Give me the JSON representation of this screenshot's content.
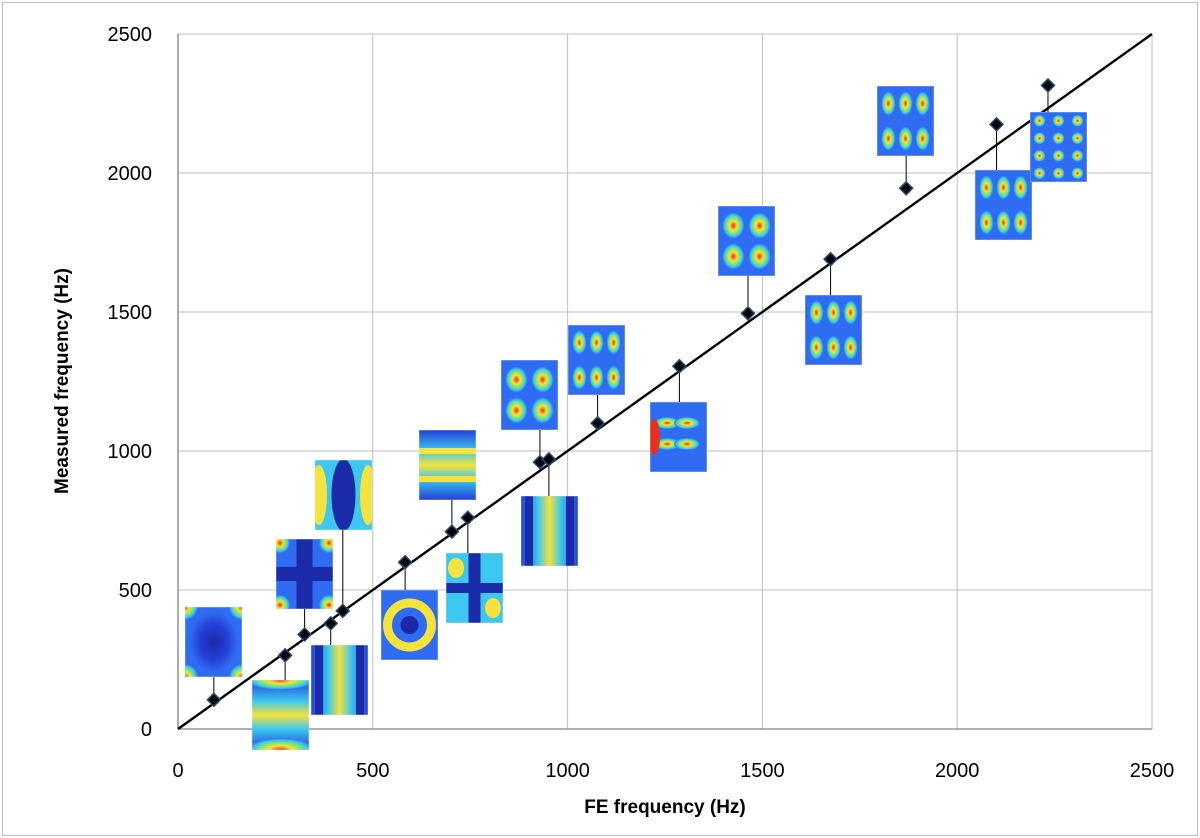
{
  "chart_data": {
    "type": "scatter",
    "title": "",
    "xlabel": "FE frequency (Hz)",
    "ylabel": "Measured frequency (Hz)",
    "xlim": [
      0,
      2500
    ],
    "ylim": [
      0,
      2500
    ],
    "x_ticks": [
      0,
      500,
      1000,
      1500,
      2000,
      2500
    ],
    "y_ticks": [
      0,
      500,
      1000,
      1500,
      2000,
      2500
    ],
    "grid": true,
    "legend": "none",
    "reference_line": {
      "from": [
        0,
        0
      ],
      "to": [
        2500,
        2500
      ]
    },
    "marker_color": "#000000",
    "marker_edge_color": "#1f4e79",
    "points": [
      {
        "x": 92,
        "y": 105
      },
      {
        "x": 275,
        "y": 265
      },
      {
        "x": 325,
        "y": 340
      },
      {
        "x": 392,
        "y": 380
      },
      {
        "x": 423,
        "y": 425
      },
      {
        "x": 583,
        "y": 600
      },
      {
        "x": 703,
        "y": 710
      },
      {
        "x": 744,
        "y": 760
      },
      {
        "x": 929,
        "y": 960
      },
      {
        "x": 952,
        "y": 970
      },
      {
        "x": 1077,
        "y": 1100
      },
      {
        "x": 1287,
        "y": 1305
      },
      {
        "x": 1463,
        "y": 1495
      },
      {
        "x": 1675,
        "y": 1690
      },
      {
        "x": 1869,
        "y": 1945
      },
      {
        "x": 2101,
        "y": 2175
      },
      {
        "x": 2233,
        "y": 2315
      }
    ],
    "mode_shape_insets": [
      {
        "mode": 1,
        "point": 0,
        "pattern": "plate-center",
        "colormap": "jet"
      },
      {
        "mode": 2,
        "point": 1,
        "pattern": "horizontal-arcs",
        "colormap": "jet"
      },
      {
        "mode": 3,
        "point": 2,
        "pattern": "cross",
        "colormap": "jet"
      },
      {
        "mode": 4,
        "point": 3,
        "pattern": "vertical-arcs",
        "colormap": "jet"
      },
      {
        "mode": 5,
        "point": 4,
        "pattern": "vertical-bands",
        "colormap": "jet"
      },
      {
        "mode": 6,
        "point": 5,
        "pattern": "ring",
        "colormap": "jet"
      },
      {
        "mode": 7,
        "point": 6,
        "pattern": "horizontal-stripes",
        "colormap": "jet"
      },
      {
        "mode": 8,
        "point": 7,
        "pattern": "cross-bands",
        "colormap": "jet"
      },
      {
        "mode": 9,
        "point": 8,
        "pattern": "checker",
        "colormap": "jet"
      },
      {
        "mode": 10,
        "point": 9,
        "pattern": "vertical-stripes",
        "colormap": "jet"
      },
      {
        "mode": 11,
        "point": 10,
        "pattern": "ovals-grid",
        "colormap": "jet"
      },
      {
        "mode": 12,
        "point": 11,
        "pattern": "horizontal-lobes",
        "colormap": "jet"
      },
      {
        "mode": 13,
        "point": 12,
        "pattern": "checker",
        "colormap": "jet"
      },
      {
        "mode": 14,
        "point": 13,
        "pattern": "ovals-grid",
        "colormap": "jet"
      },
      {
        "mode": 15,
        "point": 14,
        "pattern": "ovals-grid",
        "colormap": "jet"
      },
      {
        "mode": 16,
        "point": 15,
        "pattern": "ovals-grid",
        "colormap": "jet"
      },
      {
        "mode": 17,
        "point": 16,
        "pattern": "dots-grid",
        "colormap": "jet"
      }
    ]
  }
}
